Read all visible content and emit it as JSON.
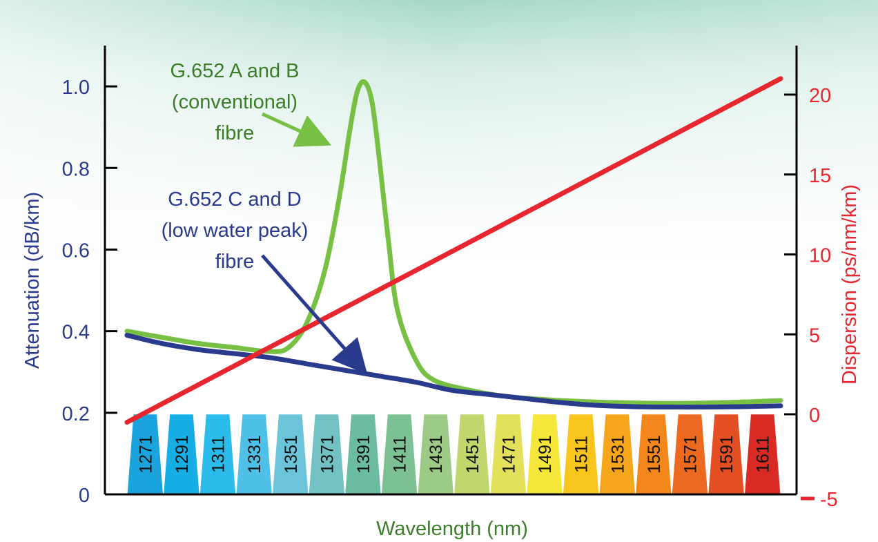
{
  "chart_data": {
    "type": "line",
    "xlabel": "Wavelength (nm)",
    "y_left": {
      "label": "Attenuation (dB/km)",
      "ticks": [
        "0",
        "0.2",
        "0.4",
        "0.6",
        "0.8",
        "1.0"
      ],
      "ylim": [
        0,
        1.1
      ]
    },
    "y_right": {
      "label": "Dispersion (ps/nm/km)",
      "ticks": [
        "-5",
        "0",
        "5",
        "10",
        "15",
        "20"
      ],
      "ylim": [
        -5,
        22
      ]
    },
    "xlim": [
      1261,
      1621
    ],
    "channels": [
      "1271",
      "1291",
      "1311",
      "1331",
      "1351",
      "1371",
      "1391",
      "1411",
      "1431",
      "1451",
      "1471",
      "1491",
      "1511",
      "1531",
      "1551",
      "1571",
      "1591",
      "1611"
    ],
    "channel_colors": [
      "#1aa3dc",
      "#17aee6",
      "#2bbcec",
      "#4fc0e8",
      "#6cc4da",
      "#72c2c4",
      "#6cbca4",
      "#7cc194",
      "#9dca86",
      "#c2d66e",
      "#e3e05a",
      "#f5e63a",
      "#f7c51c",
      "#f6a61a",
      "#f3871c",
      "#ec6a1f",
      "#e34e22",
      "#d92a24"
    ],
    "series": [
      {
        "name": "G.652 A and B (conventional) fibre",
        "axis": "left",
        "color": "#77c043",
        "x": [
          1261,
          1280,
          1300,
          1320,
          1340,
          1350,
          1360,
          1370,
          1378,
          1384,
          1388,
          1392,
          1396,
          1400,
          1405,
          1410,
          1420,
          1430,
          1450,
          1470,
          1500,
          1530,
          1560,
          1590,
          1621
        ],
        "y": [
          0.4,
          0.385,
          0.37,
          0.36,
          0.35,
          0.36,
          0.42,
          0.55,
          0.73,
          0.9,
          0.99,
          1.01,
          0.96,
          0.82,
          0.62,
          0.45,
          0.33,
          0.28,
          0.255,
          0.24,
          0.23,
          0.225,
          0.223,
          0.225,
          0.23
        ]
      },
      {
        "name": "G.652 C and D (low water peak) fibre",
        "axis": "left",
        "color": "#2a3a8c",
        "x": [
          1261,
          1280,
          1300,
          1320,
          1340,
          1360,
          1380,
          1400,
          1420,
          1440,
          1460,
          1480,
          1500,
          1520,
          1540,
          1560,
          1580,
          1600,
          1621
        ],
        "y": [
          0.39,
          0.37,
          0.355,
          0.345,
          0.335,
          0.32,
          0.305,
          0.29,
          0.275,
          0.255,
          0.245,
          0.235,
          0.225,
          0.218,
          0.215,
          0.214,
          0.214,
          0.215,
          0.217
        ]
      },
      {
        "name": "Dispersion",
        "axis": "right",
        "color": "#e8262f",
        "x": [
          1261,
          1621
        ],
        "y": [
          -0.5,
          21
        ]
      }
    ],
    "annotations": [
      {
        "id": "ab",
        "lines": [
          "G.652 A and B",
          "(conventional)",
          "fibre"
        ],
        "color": "#3c7d2a",
        "arrow_to": [
          1380,
          0.82
        ]
      },
      {
        "id": "cd",
        "lines": [
          "G.652 C and D",
          "(low water peak)",
          "fibre"
        ],
        "color": "#2a3a8c",
        "arrow_to": [
          1400,
          0.3
        ]
      }
    ]
  }
}
